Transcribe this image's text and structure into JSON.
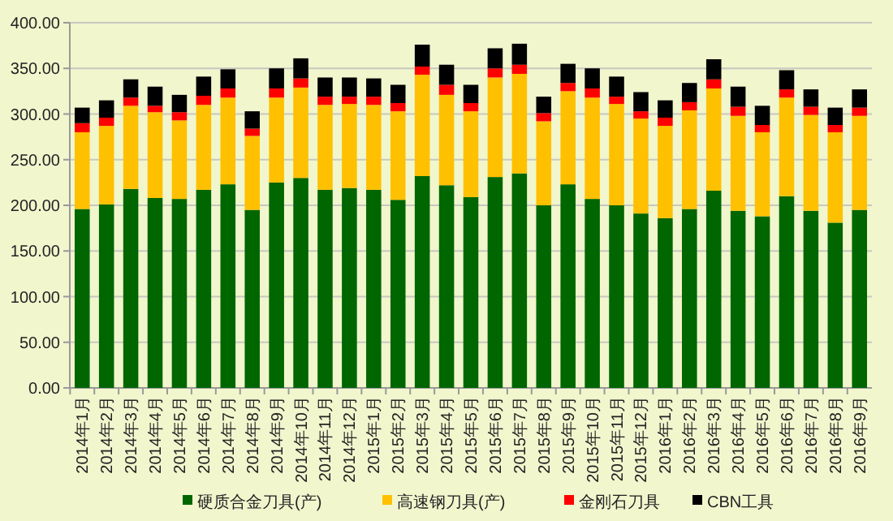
{
  "chart_data": {
    "type": "bar",
    "stacked": true,
    "categories": [
      "2014年1月",
      "2014年2月",
      "2014年3月",
      "2014年4月",
      "2014年5月",
      "2014年6月",
      "2014年7月",
      "2014年8月",
      "2014年9月",
      "2014年10月",
      "2014年11月",
      "2014年12月",
      "2015年1月",
      "2015年2月",
      "2015年3月",
      "2015年4月",
      "2015年5月",
      "2015年6月",
      "2015年7月",
      "2015年8月",
      "2015年9月",
      "2015年10月",
      "2015年11月",
      "2015年12月",
      "2016年1月",
      "2016年2月",
      "2016年3月",
      "2016年4月",
      "2016年5月",
      "2016年6月",
      "2016年7月",
      "2016年8月",
      "2016年9月"
    ],
    "series": [
      {
        "name": "硬质合金刀具(产)",
        "color": "#006600",
        "values": [
          196,
          201,
          218,
          208,
          207,
          217,
          223,
          195,
          225,
          230,
          217,
          219,
          217,
          206,
          232,
          222,
          209,
          231,
          235,
          200,
          223,
          207,
          200,
          191,
          186,
          196,
          216,
          194,
          188,
          210,
          194,
          181,
          195
        ]
      },
      {
        "name": "高速钢刀具(产)",
        "color": "#ffc000",
        "values": [
          84,
          86,
          91,
          94,
          86,
          93,
          95,
          81,
          93,
          99,
          93,
          92,
          93,
          97,
          111,
          99,
          94,
          109,
          109,
          92,
          102,
          111,
          111,
          104,
          101,
          108,
          112,
          104,
          92,
          108,
          105,
          99,
          103
        ]
      },
      {
        "name": "金刚石刀具",
        "color": "#ff0000",
        "values": [
          10,
          9,
          9,
          7,
          9,
          10,
          10,
          8,
          10,
          10,
          9,
          8,
          9,
          9,
          9,
          11,
          9,
          10,
          10,
          9,
          9,
          10,
          8,
          8,
          9,
          9,
          10,
          10,
          8,
          9,
          9,
          8,
          9
        ]
      },
      {
        "name": "CBN工具",
        "color": "#000000",
        "values": [
          17,
          19,
          20,
          21,
          19,
          21,
          21,
          19,
          22,
          22,
          21,
          21,
          20,
          20,
          24,
          22,
          20,
          22,
          23,
          18,
          21,
          22,
          22,
          21,
          19,
          21,
          22,
          22,
          21,
          21,
          19,
          19,
          20
        ]
      }
    ],
    "ylim": [
      0,
      400
    ],
    "yticks": [
      {
        "value": 0,
        "label": "0.00"
      },
      {
        "value": 50,
        "label": "50.00"
      },
      {
        "value": 100,
        "label": "100.00"
      },
      {
        "value": 150,
        "label": "150.00"
      },
      {
        "value": 200,
        "label": "200.00"
      },
      {
        "value": 250,
        "label": "250.00"
      },
      {
        "value": 300,
        "label": "300.00"
      },
      {
        "value": 350,
        "label": "350.00"
      },
      {
        "value": 400,
        "label": "400.00"
      }
    ],
    "grid": "y",
    "legend": "bottom"
  }
}
